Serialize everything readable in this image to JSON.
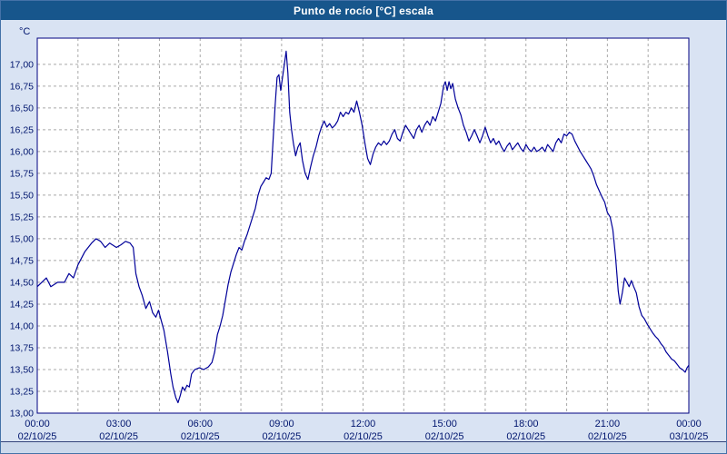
{
  "window": {
    "title": "Punto de rocío [°C] escala"
  },
  "colors": {
    "titlebar": "#17568c",
    "background": "#d9e3f3",
    "plot_bg": "#ffffff",
    "grid": "#a9a9a9",
    "frame": "#000080",
    "line": "#000099",
    "axis_text": "#00156e",
    "strip": "#ccd9ec"
  },
  "chart_data": {
    "type": "line",
    "title": "Punto de rocío [°C] escala",
    "ylabel": "°C",
    "xlabel": "",
    "ylim": [
      13.0,
      17.3
    ],
    "x_total_minutes": 1440,
    "grid_x_interval_minutes": 90,
    "grid": true,
    "legend": "none",
    "y_ticks": [
      {
        "v": 13.0,
        "label": "13,00"
      },
      {
        "v": 13.25,
        "label": "13,25"
      },
      {
        "v": 13.5,
        "label": "13,50"
      },
      {
        "v": 13.75,
        "label": "13,75"
      },
      {
        "v": 14.0,
        "label": "14,00"
      },
      {
        "v": 14.25,
        "label": "14,25"
      },
      {
        "v": 14.5,
        "label": "14,50"
      },
      {
        "v": 14.75,
        "label": "14,75"
      },
      {
        "v": 15.0,
        "label": "15,00"
      },
      {
        "v": 15.25,
        "label": "15,25"
      },
      {
        "v": 15.5,
        "label": "15,50"
      },
      {
        "v": 15.75,
        "label": "15,75"
      },
      {
        "v": 16.0,
        "label": "16,00"
      },
      {
        "v": 16.25,
        "label": "16,25"
      },
      {
        "v": 16.5,
        "label": "16,50"
      },
      {
        "v": 16.75,
        "label": "16,75"
      },
      {
        "v": 17.0,
        "label": "17,00"
      }
    ],
    "x_ticks": [
      {
        "m": 0,
        "time": "00:00",
        "date": "02/10/25"
      },
      {
        "m": 180,
        "time": "03:00",
        "date": "02/10/25"
      },
      {
        "m": 360,
        "time": "06:00",
        "date": "02/10/25"
      },
      {
        "m": 540,
        "time": "09:00",
        "date": "02/10/25"
      },
      {
        "m": 720,
        "time": "12:00",
        "date": "02/10/25"
      },
      {
        "m": 900,
        "time": "15:00",
        "date": "02/10/25"
      },
      {
        "m": 1080,
        "time": "18:00",
        "date": "02/10/25"
      },
      {
        "m": 1260,
        "time": "21:00",
        "date": "02/10/25"
      },
      {
        "m": 1440,
        "time": "00:00",
        "date": "03/10/25"
      }
    ],
    "series": [
      {
        "name": "Punto de rocío",
        "color": "#000099",
        "points": [
          [
            0,
            14.45
          ],
          [
            10,
            14.5
          ],
          [
            20,
            14.55
          ],
          [
            30,
            14.45
          ],
          [
            45,
            14.5
          ],
          [
            60,
            14.5
          ],
          [
            70,
            14.6
          ],
          [
            80,
            14.55
          ],
          [
            90,
            14.7
          ],
          [
            105,
            14.85
          ],
          [
            120,
            14.95
          ],
          [
            130,
            15.0
          ],
          [
            140,
            14.97
          ],
          [
            150,
            14.9
          ],
          [
            160,
            14.95
          ],
          [
            175,
            14.9
          ],
          [
            185,
            14.93
          ],
          [
            195,
            14.97
          ],
          [
            205,
            14.95
          ],
          [
            212,
            14.9
          ],
          [
            218,
            14.6
          ],
          [
            225,
            14.45
          ],
          [
            232,
            14.35
          ],
          [
            240,
            14.2
          ],
          [
            248,
            14.28
          ],
          [
            255,
            14.15
          ],
          [
            262,
            14.1
          ],
          [
            268,
            14.18
          ],
          [
            272,
            14.1
          ],
          [
            280,
            13.95
          ],
          [
            288,
            13.7
          ],
          [
            295,
            13.45
          ],
          [
            300,
            13.3
          ],
          [
            306,
            13.18
          ],
          [
            311,
            13.12
          ],
          [
            316,
            13.2
          ],
          [
            321,
            13.3
          ],
          [
            326,
            13.26
          ],
          [
            331,
            13.32
          ],
          [
            336,
            13.3
          ],
          [
            341,
            13.45
          ],
          [
            348,
            13.5
          ],
          [
            358,
            13.52
          ],
          [
            368,
            13.5
          ],
          [
            378,
            13.53
          ],
          [
            386,
            13.58
          ],
          [
            392,
            13.7
          ],
          [
            398,
            13.9
          ],
          [
            404,
            14.0
          ],
          [
            410,
            14.12
          ],
          [
            416,
            14.3
          ],
          [
            422,
            14.48
          ],
          [
            428,
            14.62
          ],
          [
            434,
            14.72
          ],
          [
            440,
            14.82
          ],
          [
            446,
            14.9
          ],
          [
            452,
            14.87
          ],
          [
            458,
            14.97
          ],
          [
            464,
            15.05
          ],
          [
            470,
            15.15
          ],
          [
            476,
            15.25
          ],
          [
            482,
            15.35
          ],
          [
            488,
            15.5
          ],
          [
            494,
            15.6
          ],
          [
            500,
            15.65
          ],
          [
            506,
            15.7
          ],
          [
            512,
            15.68
          ],
          [
            517,
            15.75
          ],
          [
            522,
            16.2
          ],
          [
            526,
            16.55
          ],
          [
            530,
            16.85
          ],
          [
            534,
            16.88
          ],
          [
            538,
            16.7
          ],
          [
            542,
            16.85
          ],
          [
            546,
            17.0
          ],
          [
            550,
            17.15
          ],
          [
            554,
            16.9
          ],
          [
            558,
            16.45
          ],
          [
            562,
            16.25
          ],
          [
            566,
            16.1
          ],
          [
            571,
            15.95
          ],
          [
            576,
            16.05
          ],
          [
            581,
            16.1
          ],
          [
            586,
            15.9
          ],
          [
            592,
            15.75
          ],
          [
            598,
            15.68
          ],
          [
            604,
            15.82
          ],
          [
            610,
            15.95
          ],
          [
            616,
            16.05
          ],
          [
            622,
            16.18
          ],
          [
            628,
            16.28
          ],
          [
            634,
            16.35
          ],
          [
            640,
            16.28
          ],
          [
            646,
            16.32
          ],
          [
            652,
            16.27
          ],
          [
            658,
            16.3
          ],
          [
            664,
            16.35
          ],
          [
            670,
            16.45
          ],
          [
            676,
            16.4
          ],
          [
            682,
            16.45
          ],
          [
            688,
            16.43
          ],
          [
            694,
            16.5
          ],
          [
            700,
            16.45
          ],
          [
            706,
            16.58
          ],
          [
            712,
            16.45
          ],
          [
            718,
            16.3
          ],
          [
            724,
            16.1
          ],
          [
            730,
            15.92
          ],
          [
            736,
            15.85
          ],
          [
            742,
            15.97
          ],
          [
            748,
            16.05
          ],
          [
            754,
            16.1
          ],
          [
            760,
            16.07
          ],
          [
            766,
            16.12
          ],
          [
            772,
            16.08
          ],
          [
            778,
            16.12
          ],
          [
            784,
            16.2
          ],
          [
            790,
            16.25
          ],
          [
            796,
            16.15
          ],
          [
            802,
            16.12
          ],
          [
            808,
            16.22
          ],
          [
            814,
            16.3
          ],
          [
            820,
            16.25
          ],
          [
            826,
            16.2
          ],
          [
            832,
            16.15
          ],
          [
            838,
            16.25
          ],
          [
            844,
            16.3
          ],
          [
            850,
            16.22
          ],
          [
            856,
            16.3
          ],
          [
            862,
            16.35
          ],
          [
            868,
            16.3
          ],
          [
            874,
            16.4
          ],
          [
            880,
            16.35
          ],
          [
            886,
            16.45
          ],
          [
            892,
            16.55
          ],
          [
            898,
            16.75
          ],
          [
            902,
            16.8
          ],
          [
            906,
            16.7
          ],
          [
            910,
            16.8
          ],
          [
            914,
            16.72
          ],
          [
            918,
            16.78
          ],
          [
            924,
            16.6
          ],
          [
            930,
            16.5
          ],
          [
            936,
            16.42
          ],
          [
            942,
            16.3
          ],
          [
            948,
            16.22
          ],
          [
            954,
            16.12
          ],
          [
            960,
            16.18
          ],
          [
            966,
            16.25
          ],
          [
            972,
            16.18
          ],
          [
            978,
            16.1
          ],
          [
            984,
            16.18
          ],
          [
            990,
            16.28
          ],
          [
            996,
            16.18
          ],
          [
            1002,
            16.1
          ],
          [
            1008,
            16.15
          ],
          [
            1014,
            16.08
          ],
          [
            1020,
            16.12
          ],
          [
            1026,
            16.05
          ],
          [
            1032,
            16.0
          ],
          [
            1038,
            16.06
          ],
          [
            1044,
            16.1
          ],
          [
            1050,
            16.02
          ],
          [
            1056,
            16.06
          ],
          [
            1062,
            16.1
          ],
          [
            1068,
            16.04
          ],
          [
            1074,
            16.0
          ],
          [
            1080,
            16.08
          ],
          [
            1086,
            16.03
          ],
          [
            1092,
            16.0
          ],
          [
            1098,
            16.05
          ],
          [
            1104,
            16.0
          ],
          [
            1110,
            16.02
          ],
          [
            1116,
            16.05
          ],
          [
            1122,
            16.0
          ],
          [
            1128,
            16.08
          ],
          [
            1134,
            16.04
          ],
          [
            1140,
            16.0
          ],
          [
            1146,
            16.1
          ],
          [
            1152,
            16.15
          ],
          [
            1158,
            16.1
          ],
          [
            1164,
            16.2
          ],
          [
            1170,
            16.18
          ],
          [
            1176,
            16.22
          ],
          [
            1182,
            16.2
          ],
          [
            1188,
            16.12
          ],
          [
            1194,
            16.06
          ],
          [
            1200,
            16.0
          ],
          [
            1206,
            15.95
          ],
          [
            1212,
            15.9
          ],
          [
            1218,
            15.85
          ],
          [
            1224,
            15.8
          ],
          [
            1230,
            15.72
          ],
          [
            1236,
            15.62
          ],
          [
            1242,
            15.55
          ],
          [
            1248,
            15.48
          ],
          [
            1254,
            15.42
          ],
          [
            1260,
            15.3
          ],
          [
            1266,
            15.25
          ],
          [
            1272,
            15.1
          ],
          [
            1278,
            14.8
          ],
          [
            1284,
            14.4
          ],
          [
            1288,
            14.25
          ],
          [
            1293,
            14.38
          ],
          [
            1298,
            14.55
          ],
          [
            1303,
            14.5
          ],
          [
            1308,
            14.45
          ],
          [
            1313,
            14.52
          ],
          [
            1318,
            14.45
          ],
          [
            1324,
            14.38
          ],
          [
            1330,
            14.22
          ],
          [
            1336,
            14.12
          ],
          [
            1342,
            14.08
          ],
          [
            1348,
            14.02
          ],
          [
            1354,
            13.97
          ],
          [
            1360,
            13.92
          ],
          [
            1366,
            13.88
          ],
          [
            1372,
            13.85
          ],
          [
            1378,
            13.8
          ],
          [
            1384,
            13.76
          ],
          [
            1390,
            13.7
          ],
          [
            1396,
            13.66
          ],
          [
            1402,
            13.62
          ],
          [
            1408,
            13.6
          ],
          [
            1414,
            13.56
          ],
          [
            1420,
            13.52
          ],
          [
            1426,
            13.5
          ],
          [
            1432,
            13.47
          ],
          [
            1436,
            13.52
          ],
          [
            1440,
            13.55
          ]
        ]
      }
    ]
  }
}
